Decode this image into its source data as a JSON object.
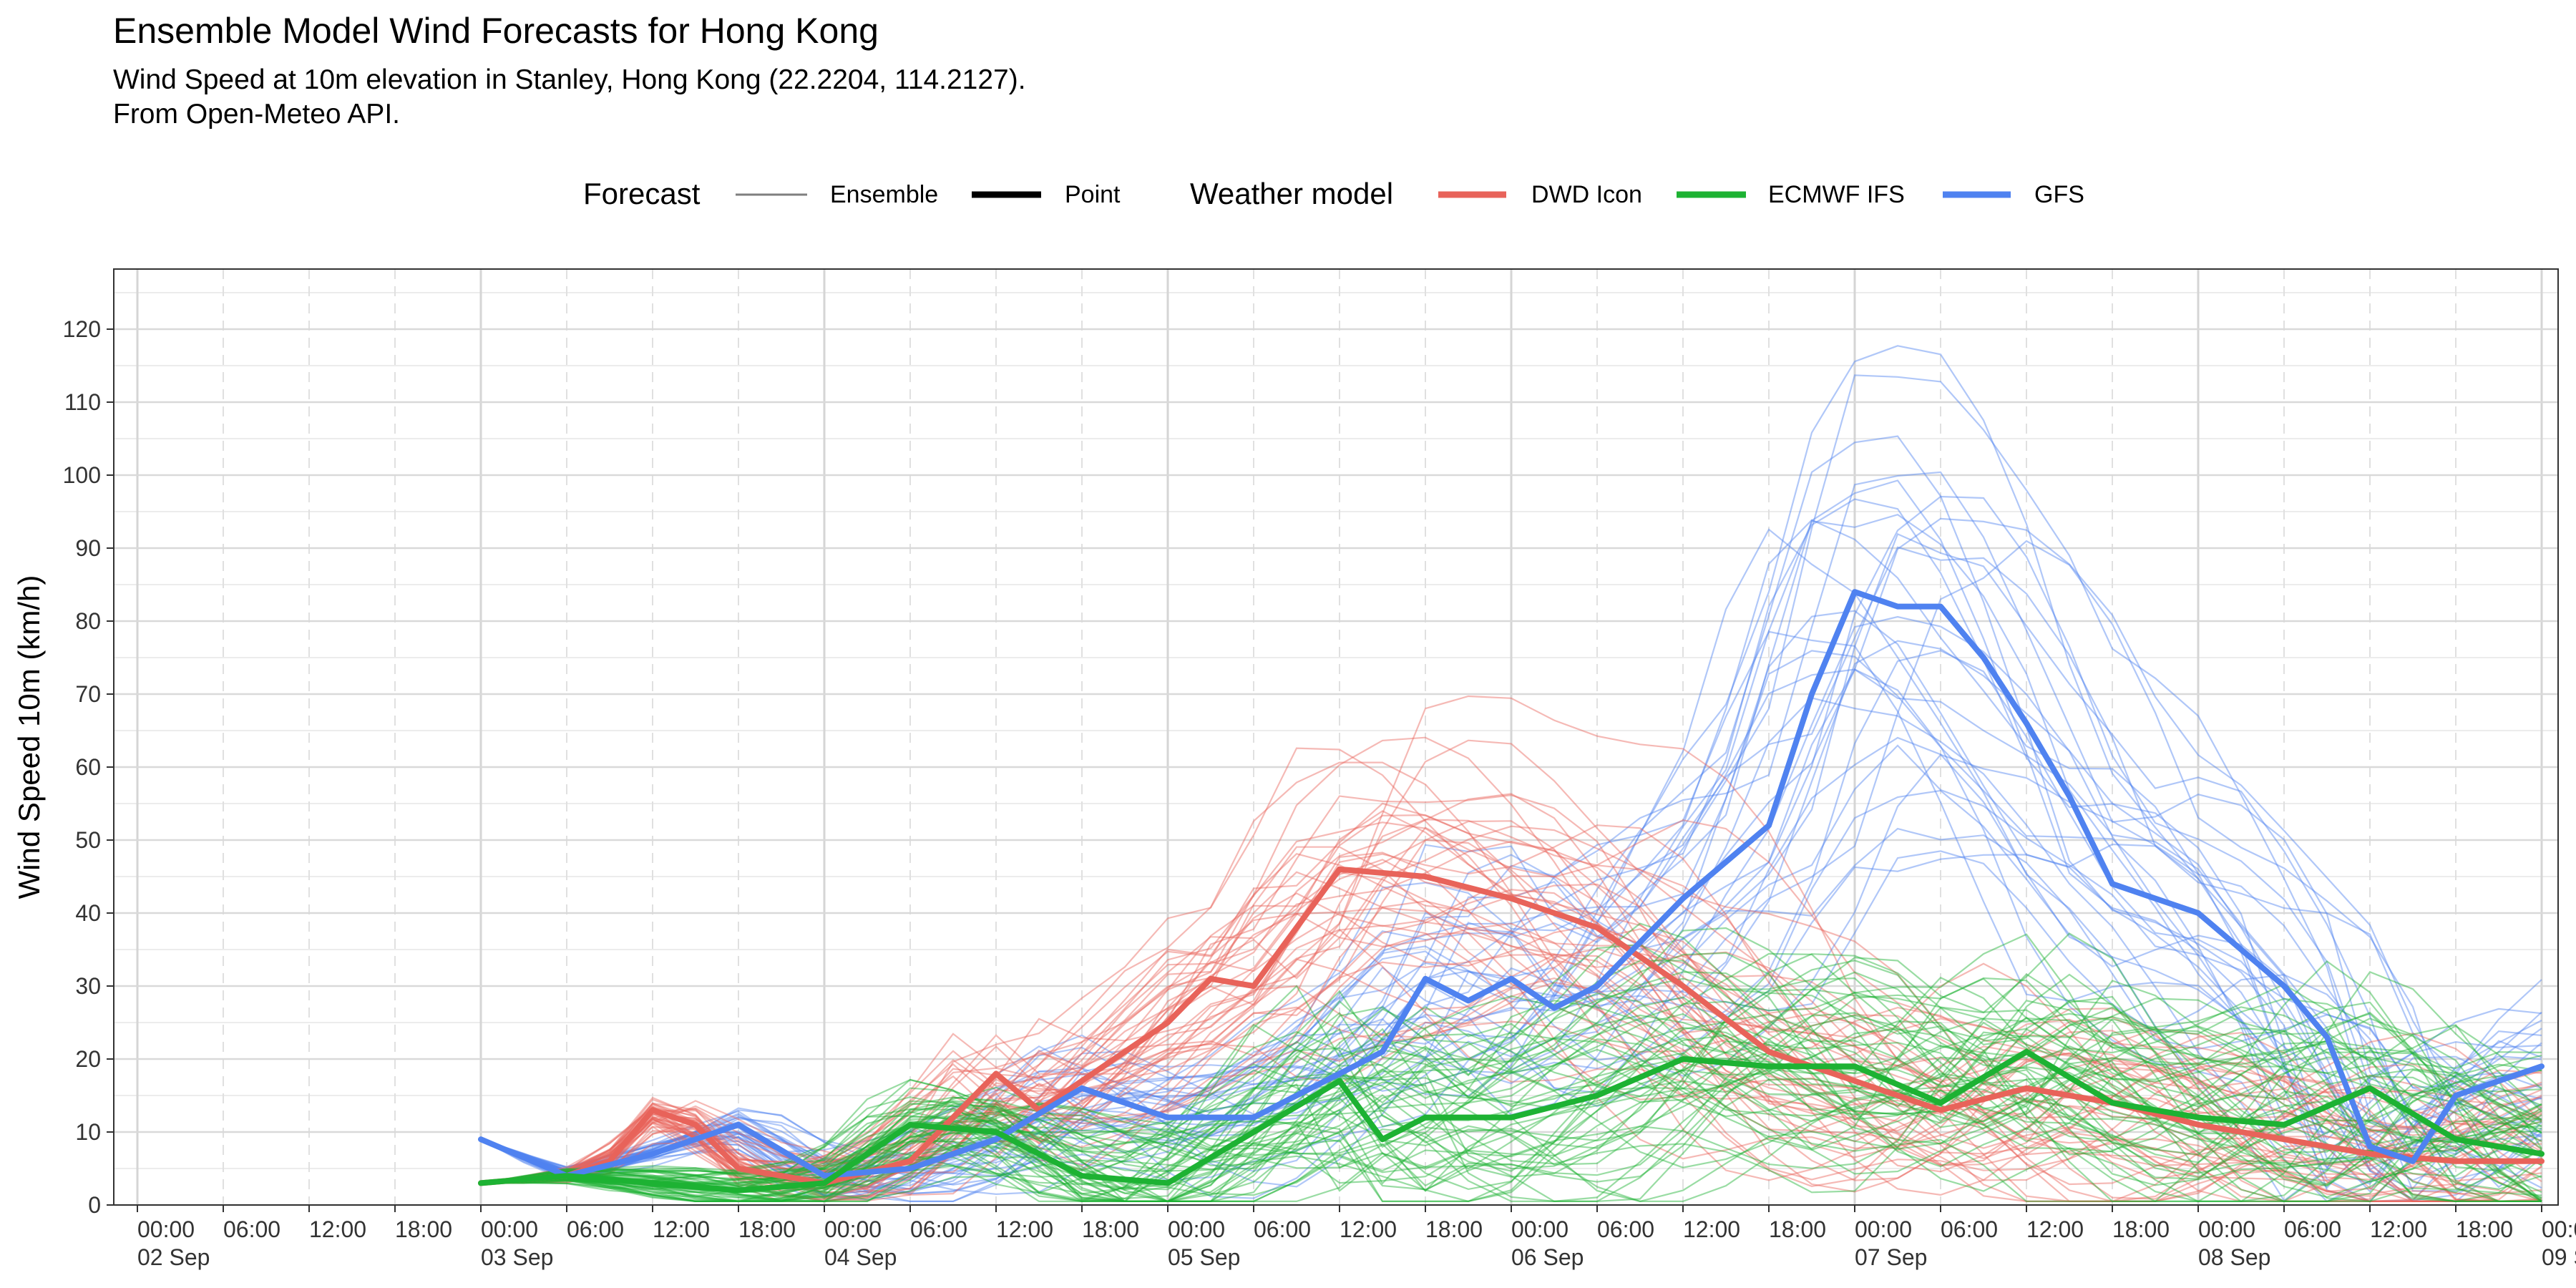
{
  "header": {
    "title": "Ensemble Model Wind Forecasts for Hong Kong",
    "subtitle_line1": "Wind Speed at 10m elevation in Stanley, Hong Kong (22.2204, 114.2127).",
    "subtitle_line2": "From Open-Meteo API."
  },
  "legend": {
    "forecast_title": "Forecast",
    "forecast_items": [
      "Ensemble",
      "Point"
    ],
    "model_title": "Weather model",
    "model_items": [
      {
        "name": "DWD Icon",
        "color": "#E8635A"
      },
      {
        "name": "ECMWF IFS",
        "color": "#1DB233"
      },
      {
        "name": "GFS",
        "color": "#4F82F0"
      }
    ]
  },
  "chart_data": {
    "type": "line",
    "ylabel": "Wind Speed 10m (km/h)",
    "xlim": [
      "2024-09-02 00:00",
      "2024-09-09 00:00"
    ],
    "ylim": [
      0,
      125
    ],
    "y_ticks": [
      0,
      10,
      20,
      30,
      40,
      50,
      60,
      70,
      80,
      90,
      100,
      110,
      120
    ],
    "x_tick_labels": [
      {
        "time": "00:00",
        "date": "02 Sep"
      },
      {
        "time": "06:00",
        "date": ""
      },
      {
        "time": "12:00",
        "date": ""
      },
      {
        "time": "18:00",
        "date": ""
      },
      {
        "time": "00:00",
        "date": "03 Sep"
      },
      {
        "time": "06:00",
        "date": ""
      },
      {
        "time": "12:00",
        "date": ""
      },
      {
        "time": "18:00",
        "date": ""
      },
      {
        "time": "00:00",
        "date": "04 Sep"
      },
      {
        "time": "06:00",
        "date": ""
      },
      {
        "time": "12:00",
        "date": ""
      },
      {
        "time": "18:00",
        "date": ""
      },
      {
        "time": "00:00",
        "date": "05 Sep"
      },
      {
        "time": "06:00",
        "date": ""
      },
      {
        "time": "12:00",
        "date": ""
      },
      {
        "time": "18:00",
        "date": ""
      },
      {
        "time": "00:00",
        "date": "06 Sep"
      },
      {
        "time": "06:00",
        "date": ""
      },
      {
        "time": "12:00",
        "date": ""
      },
      {
        "time": "18:00",
        "date": ""
      },
      {
        "time": "00:00",
        "date": "07 Sep"
      },
      {
        "time": "06:00",
        "date": ""
      },
      {
        "time": "12:00",
        "date": ""
      },
      {
        "time": "18:00",
        "date": ""
      },
      {
        "time": "00:00",
        "date": "08 Sep"
      },
      {
        "time": "06:00",
        "date": ""
      },
      {
        "time": "12:00",
        "date": ""
      },
      {
        "time": "18:00",
        "date": ""
      },
      {
        "time": "00:0",
        "date": "09 S"
      }
    ],
    "grid": true,
    "legend_position": "top",
    "series": [
      {
        "name": "GFS",
        "kind": "Point",
        "color": "#4F82F0",
        "x": [
          "2024-09-03 00:00",
          "2024-09-03 06:00",
          "2024-09-03 12:00",
          "2024-09-03 18:00",
          "2024-09-04 00:00",
          "2024-09-04 06:00",
          "2024-09-04 12:00",
          "2024-09-04 18:00",
          "2024-09-05 00:00",
          "2024-09-05 06:00",
          "2024-09-05 12:00",
          "2024-09-05 15:00",
          "2024-09-05 18:00",
          "2024-09-05 21:00",
          "2024-09-06 00:00",
          "2024-09-06 03:00",
          "2024-09-06 06:00",
          "2024-09-06 12:00",
          "2024-09-06 18:00",
          "2024-09-06 21:00",
          "2024-09-07 00:00",
          "2024-09-07 03:00",
          "2024-09-07 06:00",
          "2024-09-07 09:00",
          "2024-09-07 12:00",
          "2024-09-07 15:00",
          "2024-09-07 18:00",
          "2024-09-08 00:00",
          "2024-09-08 06:00",
          "2024-09-08 09:00",
          "2024-09-08 12:00",
          "2024-09-08 15:00",
          "2024-09-08 18:00",
          "2024-09-09 00:00"
        ],
        "y": [
          9,
          4,
          7,
          11,
          4,
          5,
          9,
          16,
          12,
          12,
          18,
          21,
          31,
          28,
          31,
          27,
          30,
          42,
          52,
          70,
          84,
          82,
          82,
          75,
          66,
          56,
          44,
          40,
          30,
          23,
          8,
          6,
          15,
          19
        ]
      },
      {
        "name": "DWD Icon",
        "kind": "Point",
        "color": "#E8635A",
        "x": [
          "2024-09-03 00:00",
          "2024-09-03 06:00",
          "2024-09-03 09:00",
          "2024-09-03 12:00",
          "2024-09-03 15:00",
          "2024-09-03 18:00",
          "2024-09-04 00:00",
          "2024-09-04 06:00",
          "2024-09-04 12:00",
          "2024-09-04 15:00",
          "2024-09-04 18:00",
          "2024-09-05 00:00",
          "2024-09-05 03:00",
          "2024-09-05 06:00",
          "2024-09-05 09:00",
          "2024-09-05 12:00",
          "2024-09-05 18:00",
          "2024-09-06 00:00",
          "2024-09-06 06:00",
          "2024-09-06 12:00",
          "2024-09-06 18:00",
          "2024-09-07 00:00",
          "2024-09-07 06:00",
          "2024-09-07 12:00",
          "2024-09-07 18:00",
          "2024-09-08 00:00",
          "2024-09-08 06:00",
          "2024-09-08 12:00",
          "2024-09-08 18:00",
          "2024-09-09 00:00"
        ],
        "y": [
          3,
          4,
          6,
          13,
          11,
          5,
          3,
          6,
          18,
          13,
          17,
          25,
          31,
          30,
          38,
          46,
          45,
          42,
          38,
          30,
          21,
          17,
          13,
          16,
          14,
          11,
          9,
          7,
          6,
          6
        ]
      },
      {
        "name": "ECMWF IFS",
        "kind": "Point",
        "color": "#1DB233",
        "x": [
          "2024-09-03 00:00",
          "2024-09-03 06:00",
          "2024-09-03 12:00",
          "2024-09-03 18:00",
          "2024-09-04 00:00",
          "2024-09-04 06:00",
          "2024-09-04 12:00",
          "2024-09-04 18:00",
          "2024-09-05 00:00",
          "2024-09-05 06:00",
          "2024-09-05 12:00",
          "2024-09-05 15:00",
          "2024-09-05 18:00",
          "2024-09-06 00:00",
          "2024-09-06 06:00",
          "2024-09-06 12:00",
          "2024-09-06 18:00",
          "2024-09-07 00:00",
          "2024-09-07 06:00",
          "2024-09-07 12:00",
          "2024-09-07 18:00",
          "2024-09-08 00:00",
          "2024-09-08 06:00",
          "2024-09-08 12:00",
          "2024-09-08 18:00",
          "2024-09-09 00:00"
        ],
        "y": [
          3,
          4,
          3,
          2,
          3,
          11,
          10,
          4,
          3,
          10,
          17,
          9,
          12,
          12,
          15,
          20,
          19,
          19,
          14,
          21,
          14,
          12,
          11,
          16,
          9,
          7
        ]
      }
    ]
  }
}
